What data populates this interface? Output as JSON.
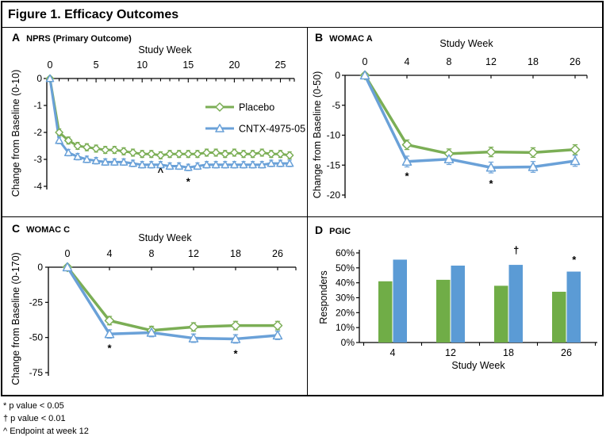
{
  "figure": {
    "title": "Figure 1. Efficacy Outcomes"
  },
  "footnotes": [
    "* p value < 0.05",
    "† p value < 0.01",
    "^ Endpoint at week 12"
  ],
  "colors": {
    "placebo_line": "#7bae55",
    "cntx_line": "#6aa1d8",
    "placebo_bar": "#70ad47",
    "cntx_bar": "#5b9bd5",
    "marker_fill": "#ffffff",
    "axis": "#000000"
  },
  "chart_data": [
    {
      "panel": "A",
      "title": "NPRS (Primary Outcome)",
      "type": "line",
      "xlabel": "Study Week",
      "ylabel": "Change from Baseline (0-10)",
      "x": [
        0,
        1,
        2,
        3,
        4,
        5,
        6,
        7,
        8,
        9,
        10,
        11,
        12,
        13,
        14,
        15,
        16,
        17,
        18,
        19,
        20,
        21,
        22,
        23,
        24,
        25,
        26
      ],
      "xticks": [
        0,
        5,
        10,
        15,
        20,
        25
      ],
      "ylim": [
        0,
        -4
      ],
      "yticks": [
        0,
        -1,
        -2,
        -3,
        -4
      ],
      "series": [
        {
          "name": "Placebo",
          "marker": "diamond",
          "color": "#7bae55",
          "values": [
            0,
            -2.0,
            -2.3,
            -2.5,
            -2.55,
            -2.6,
            -2.65,
            -2.65,
            -2.7,
            -2.75,
            -2.8,
            -2.8,
            -2.85,
            -2.8,
            -2.8,
            -2.8,
            -2.8,
            -2.75,
            -2.75,
            -2.8,
            -2.75,
            -2.8,
            -2.8,
            -2.75,
            -2.8,
            -2.8,
            -2.85
          ],
          "err": 0.13
        },
        {
          "name": "CNTX-4975-05",
          "marker": "triangle",
          "color": "#6aa1d8",
          "values": [
            0,
            -2.3,
            -2.75,
            -2.9,
            -3.0,
            -3.05,
            -3.1,
            -3.1,
            -3.1,
            -3.15,
            -3.2,
            -3.2,
            -3.2,
            -3.25,
            -3.25,
            -3.3,
            -3.25,
            -3.2,
            -3.2,
            -3.2,
            -3.2,
            -3.2,
            -3.2,
            -3.2,
            -3.15,
            -3.15,
            -3.15
          ],
          "err": 0.12
        }
      ],
      "annotations": [
        {
          "text": "^",
          "x": 12,
          "y": -3.6
        },
        {
          "text": "*",
          "x": 15,
          "y": -3.95
        }
      ],
      "show_legend": true
    },
    {
      "panel": "B",
      "title": "WOMAC A",
      "type": "line",
      "xlabel": "Study Week",
      "ylabel": "Change from Baseline (0-50)",
      "categories": [
        0,
        4,
        8,
        12,
        18,
        26
      ],
      "ylim": [
        0,
        -20
      ],
      "yticks": [
        0,
        -5,
        -10,
        -15,
        -20
      ],
      "series": [
        {
          "name": "Placebo",
          "marker": "diamond",
          "color": "#7bae55",
          "values": [
            0,
            -11.6,
            -13.1,
            -12.8,
            -12.9,
            -12.4
          ],
          "err": 0.8
        },
        {
          "name": "CNTX-4975-05",
          "marker": "triangle",
          "color": "#6aa1d8",
          "values": [
            0,
            -14.4,
            -14.0,
            -15.4,
            -15.3,
            -14.3
          ],
          "err": 0.9
        }
      ],
      "annotations": [
        {
          "text": "*",
          "x": 1,
          "y": -17.4
        },
        {
          "text": "*",
          "x": 3,
          "y": -18.7
        }
      ]
    },
    {
      "panel": "C",
      "title": "WOMAC C",
      "type": "line",
      "xlabel": "Study Week",
      "ylabel": "Change from Baseline (0-170)",
      "categories": [
        0,
        4,
        8,
        12,
        18,
        26
      ],
      "ylim": [
        0,
        -75
      ],
      "yticks": [
        0,
        -25,
        -50,
        -75
      ],
      "series": [
        {
          "name": "Placebo",
          "marker": "diamond",
          "color": "#7bae55",
          "values": [
            0,
            -38,
            -45,
            -42.5,
            -41.5,
            -41.5
          ],
          "err": 3
        },
        {
          "name": "CNTX-4975-05",
          "marker": "triangle",
          "color": "#6aa1d8",
          "values": [
            0,
            -47.5,
            -46.5,
            -50.5,
            -51,
            -48.5
          ],
          "err": 3
        }
      ],
      "annotations": [
        {
          "text": "*",
          "x": 1,
          "y": -60
        },
        {
          "text": "*",
          "x": 4,
          "y": -64
        }
      ]
    },
    {
      "panel": "D",
      "title": "PGIC",
      "type": "bar",
      "xlabel": "Study Week",
      "ylabel": "Responders",
      "categories": [
        4,
        12,
        18,
        26
      ],
      "ylim": [
        0,
        60
      ],
      "yticks": [
        0,
        10,
        20,
        30,
        40,
        50,
        60
      ],
      "ytick_format": "percent",
      "series": [
        {
          "name": "Placebo",
          "color": "#70ad47",
          "values": [
            41,
            42,
            38,
            34
          ]
        },
        {
          "name": "CNTX-4975-05",
          "color": "#5b9bd5",
          "values": [
            55.5,
            51.5,
            52,
            47.5
          ]
        }
      ],
      "annotations": [
        {
          "text": "†",
          "x": 2,
          "y": 59.5
        },
        {
          "text": "*",
          "x": 3,
          "y": 53
        }
      ]
    }
  ]
}
